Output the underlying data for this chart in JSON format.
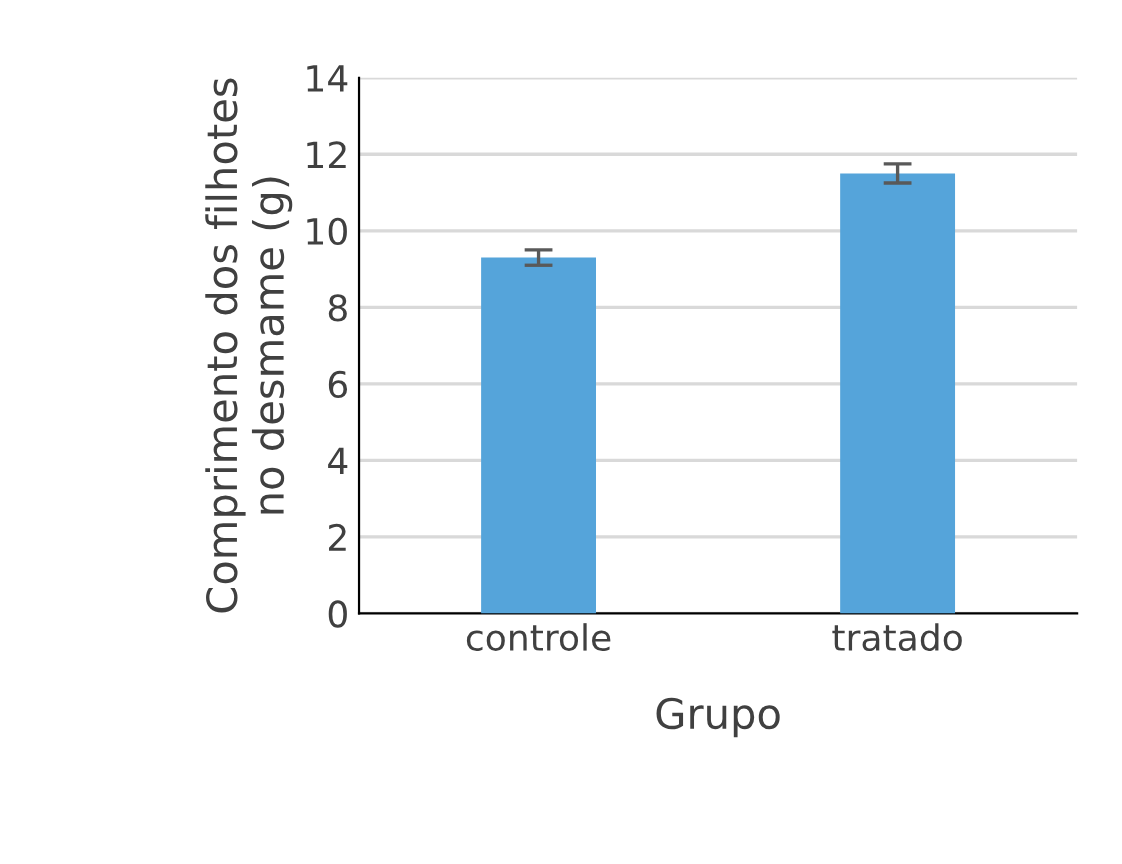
{
  "chart_data": {
    "type": "bar",
    "xlabel": "Grupo",
    "ylabel": "Comprimento dos filhotes\nno desmame (g)",
    "categories": [
      "controle",
      "tratado"
    ],
    "values": [
      9.3,
      11.5
    ],
    "errors": [
      0.2,
      0.25
    ],
    "color": "#55a4da",
    "ylim": [
      0,
      14
    ],
    "yticks": [
      0,
      2,
      4,
      6,
      8,
      10,
      12,
      14
    ],
    "grid": "y"
  }
}
